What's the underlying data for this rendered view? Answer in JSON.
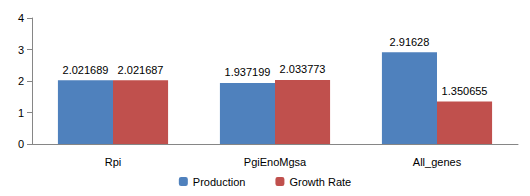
{
  "chart_data": {
    "type": "bar",
    "categories": [
      "Rpi",
      "PgiEnoMgsa",
      "All_genes"
    ],
    "series": [
      {
        "name": "Production",
        "color": "#4f81bd",
        "values": [
          2.021689,
          1.937199,
          2.91628
        ]
      },
      {
        "name": "Growth Rate",
        "color": "#c0504d",
        "values": [
          2.021687,
          2.033773,
          1.350655
        ]
      }
    ],
    "ylim": [
      0,
      4
    ],
    "yticks": [
      0,
      1,
      2,
      3,
      4
    ],
    "grid": false,
    "legend": "bottom",
    "data_labels": true
  }
}
